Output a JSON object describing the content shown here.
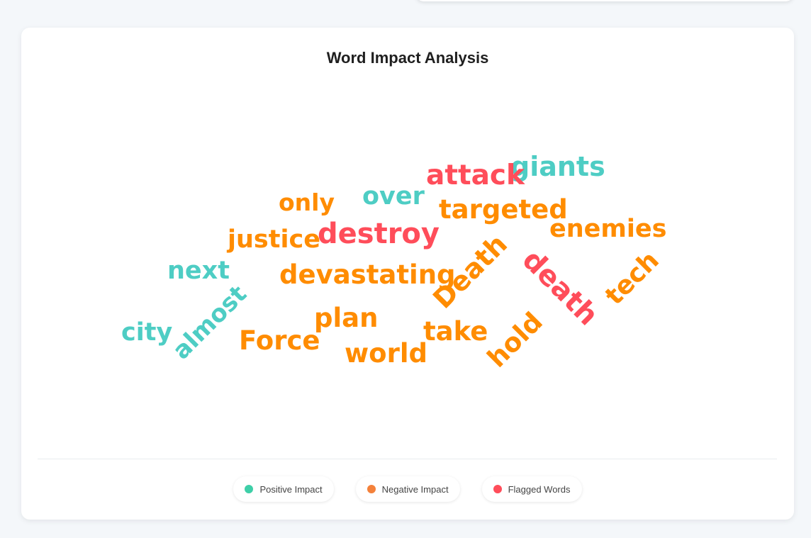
{
  "colors": {
    "positive": "#4ecdc4",
    "negative": "#ff8c00",
    "flagged": "#ff4d5a",
    "legend_positive": "#3ecfa8",
    "legend_negative": "#f4813a",
    "legend_flagged": "#ff4d5a"
  },
  "card": {
    "title": "Word Impact Analysis"
  },
  "words": [
    {
      "text": "giants",
      "type": "positive"
    },
    {
      "text": "attack",
      "type": "flagged"
    },
    {
      "text": "only",
      "type": "negative"
    },
    {
      "text": "over",
      "type": "positive"
    },
    {
      "text": "targeted",
      "type": "negative"
    },
    {
      "text": "justice",
      "type": "negative"
    },
    {
      "text": "destroy",
      "type": "flagged"
    },
    {
      "text": "enemies",
      "type": "negative"
    },
    {
      "text": "next",
      "type": "positive"
    },
    {
      "text": "devastating",
      "type": "negative"
    },
    {
      "text": "Death",
      "type": "negative"
    },
    {
      "text": "death",
      "type": "flagged"
    },
    {
      "text": "tech",
      "type": "negative"
    },
    {
      "text": "almost",
      "type": "positive"
    },
    {
      "text": "city",
      "type": "positive"
    },
    {
      "text": "plan",
      "type": "negative"
    },
    {
      "text": "take",
      "type": "negative"
    },
    {
      "text": "hold",
      "type": "negative"
    },
    {
      "text": "Force",
      "type": "negative"
    },
    {
      "text": "world",
      "type": "negative"
    }
  ],
  "legend": {
    "positive": "Positive Impact",
    "negative": "Negative Impact",
    "flagged": "Flagged Words"
  }
}
